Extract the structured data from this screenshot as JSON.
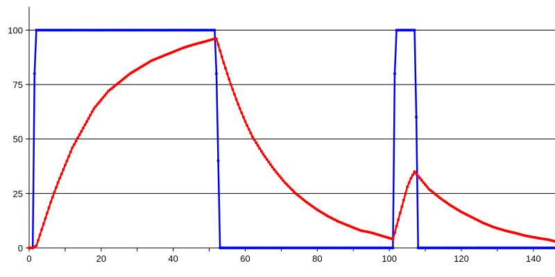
{
  "chart_data": {
    "type": "line",
    "xlim": [
      0,
      146
    ],
    "ylim": [
      0,
      110
    ],
    "x_ticks": [
      0,
      20,
      40,
      60,
      80,
      100,
      120,
      140
    ],
    "y_ticks": [
      0,
      25,
      50,
      75,
      100
    ],
    "grid": true,
    "legend": "none",
    "series": [
      {
        "color": "#0000ff",
        "marker": "dot",
        "x": [
          0,
          1,
          1.5,
          2,
          51,
          51.5,
          52,
          53,
          101,
          101.5,
          102,
          106.5,
          107,
          107.5,
          108,
          146
        ],
        "y": [
          0,
          0,
          80,
          100,
          100,
          100,
          80,
          0,
          0,
          80,
          100,
          100,
          100,
          60,
          0,
          0
        ]
      },
      {
        "color": "#ff0000",
        "marker": "dot",
        "x": [
          0,
          1,
          2,
          4,
          6,
          8,
          10,
          12,
          14,
          16,
          18,
          20,
          22,
          25,
          28,
          31,
          34,
          37,
          40,
          43,
          46,
          49,
          51,
          52,
          54,
          56,
          58,
          60,
          62,
          65,
          68,
          71,
          74,
          77,
          80,
          83,
          86,
          89,
          92,
          95,
          98,
          101,
          102,
          103,
          104,
          105,
          106,
          107,
          109,
          111,
          114,
          117,
          120,
          123,
          126,
          129,
          132,
          135,
          138,
          141,
          144,
          146
        ],
        "y": [
          0,
          0,
          1,
          11,
          21,
          30,
          38,
          46,
          52,
          58,
          64,
          68,
          72,
          76,
          80,
          83,
          86,
          88,
          90,
          92,
          93.5,
          94.8,
          95.8,
          96,
          85,
          75,
          66,
          58,
          51,
          43,
          36,
          30,
          25,
          21,
          17.5,
          14.5,
          12,
          10,
          8,
          7,
          5.5,
          4,
          10,
          16,
          22,
          28,
          32,
          35,
          31,
          27,
          23,
          19.5,
          16.5,
          14,
          11.5,
          9.5,
          8,
          6.8,
          5.5,
          4.6,
          3.8,
          3
        ]
      }
    ]
  }
}
